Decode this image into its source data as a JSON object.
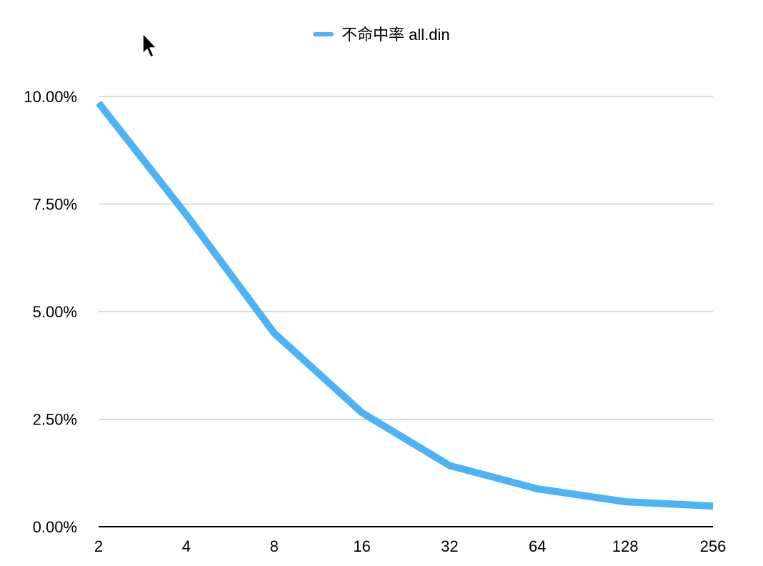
{
  "chart_data": {
    "type": "line",
    "title": "",
    "xlabel": "",
    "ylabel": "",
    "categories": [
      "2",
      "4",
      "8",
      "16",
      "32",
      "64",
      "128",
      "256"
    ],
    "series": [
      {
        "name": "不命中率 all.din",
        "color": "#4db3f5",
        "values": [
          9.85,
          7.25,
          4.5,
          2.65,
          1.42,
          0.88,
          0.58,
          0.48
        ]
      }
    ],
    "ylim": [
      0,
      10
    ],
    "yticks": [
      {
        "value": 0,
        "label": "0.00%"
      },
      {
        "value": 2.5,
        "label": "2.50%"
      },
      {
        "value": 5,
        "label": "5.00%"
      },
      {
        "value": 7.5,
        "label": "7.50%"
      },
      {
        "value": 10,
        "label": "10.00%"
      }
    ],
    "grid": true,
    "legend_position": "top-center"
  },
  "cursor": {
    "icon": "mouse-pointer-icon"
  }
}
